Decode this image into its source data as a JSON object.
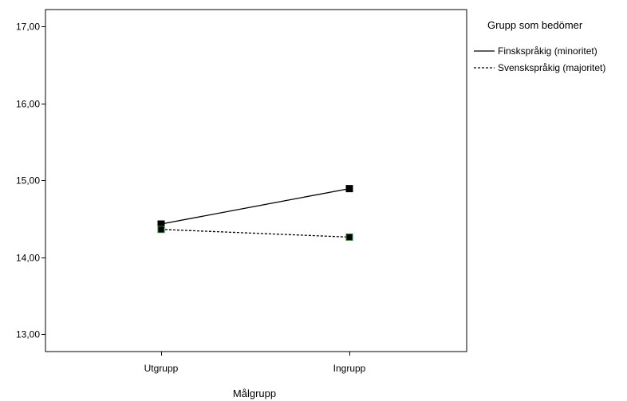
{
  "chart_data": {
    "type": "line",
    "title": "",
    "xlabel": "Målgrupp",
    "ylabel": "",
    "categories": [
      "Utgrupp",
      "Ingrupp"
    ],
    "ylim": [
      12.8,
      17.2
    ],
    "yticks": [
      13.0,
      14.0,
      15.0,
      16.0,
      17.0
    ],
    "ytick_labels": [
      "13,00",
      "14,00",
      "15,00",
      "16,00",
      "17,00"
    ],
    "grid": false,
    "legend": {
      "title": "Grupp som bedömer",
      "placement": "right"
    },
    "series": [
      {
        "name": "Finskspråkig (minoritet)",
        "line_style": "solid",
        "color": "#000000",
        "marker_fill": "#000000",
        "values": [
          14.43,
          14.89
        ]
      },
      {
        "name": "Svenskspråkig (majoritet)",
        "line_style": "dashed",
        "color": "#000000",
        "marker_fill": "#000000",
        "marker_edge": "#2e7d32",
        "values": [
          14.36,
          14.26
        ]
      }
    ]
  }
}
